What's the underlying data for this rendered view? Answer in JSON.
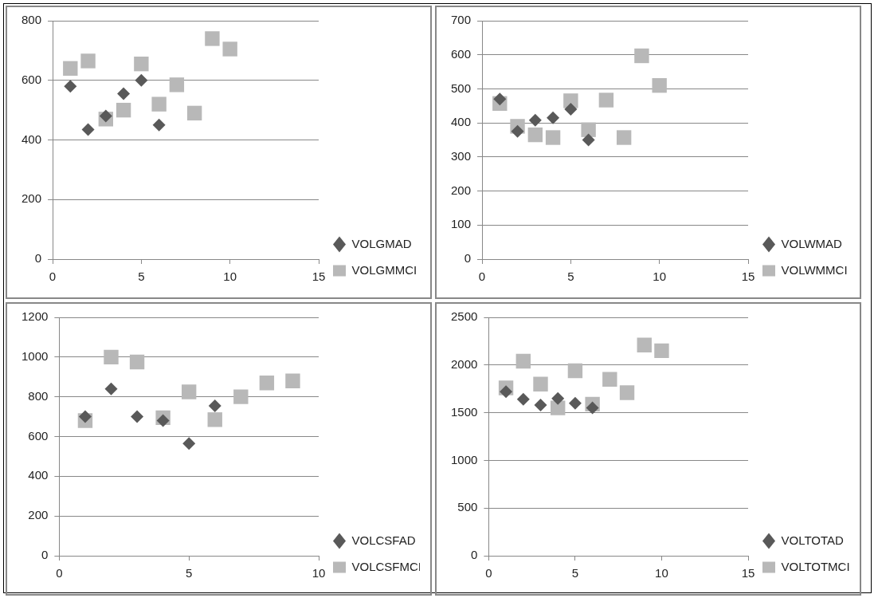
{
  "chart_data": [
    {
      "type": "scatter",
      "xlim": [
        0,
        15
      ],
      "xticks": [
        0,
        5,
        10,
        15
      ],
      "ylim": [
        0,
        800
      ],
      "yticks": [
        0,
        200,
        400,
        600,
        800
      ],
      "grid": "y",
      "legend": "bottom right",
      "series": [
        {
          "name": "VOLGMAD",
          "color": "#595959",
          "marker": "diamond",
          "x": [
            1,
            2,
            3,
            4,
            5,
            6
          ],
          "values": [
            580,
            435,
            480,
            555,
            600,
            450
          ]
        },
        {
          "name": "VOLGMMCI",
          "color": "#b8b8b8",
          "marker": "square",
          "x": [
            1,
            2,
            3,
            4,
            5,
            6,
            7,
            8,
            9,
            10
          ],
          "values": [
            640,
            665,
            470,
            500,
            655,
            520,
            585,
            490,
            740,
            705
          ]
        }
      ]
    },
    {
      "type": "scatter",
      "xlim": [
        0,
        15
      ],
      "xticks": [
        0,
        5,
        10,
        15
      ],
      "ylim": [
        0,
        700
      ],
      "yticks": [
        0,
        100,
        200,
        300,
        400,
        500,
        600,
        700
      ],
      "grid": "y",
      "legend": "bottom right",
      "series": [
        {
          "name": "VOLWMAD",
          "color": "#595959",
          "marker": "diamond",
          "x": [
            1,
            2,
            3,
            4,
            5,
            6
          ],
          "values": [
            470,
            375,
            408,
            415,
            440,
            350
          ]
        },
        {
          "name": "VOLWMMCI",
          "color": "#b8b8b8",
          "marker": "square",
          "x": [
            1,
            2,
            3,
            4,
            5,
            6,
            7,
            8,
            9,
            10
          ],
          "values": [
            457,
            390,
            365,
            357,
            465,
            380,
            467,
            357,
            597,
            510
          ]
        }
      ]
    },
    {
      "type": "scatter",
      "xlim": [
        0,
        10
      ],
      "xticks": [
        0,
        5,
        10
      ],
      "ylim": [
        0,
        1200
      ],
      "yticks": [
        0,
        200,
        400,
        600,
        800,
        1000,
        1200
      ],
      "grid": "y",
      "legend": "bottom right",
      "series": [
        {
          "name": "VOLCSFAD",
          "color": "#595959",
          "marker": "diamond",
          "x": [
            1,
            2,
            3,
            4,
            5,
            6
          ],
          "values": [
            700,
            840,
            700,
            680,
            565,
            755
          ]
        },
        {
          "name": "VOLCSFMCI",
          "color": "#b8b8b8",
          "marker": "square",
          "x": [
            1,
            2,
            3,
            4,
            5,
            6,
            7,
            8,
            9
          ],
          "values": [
            680,
            1000,
            975,
            695,
            825,
            685,
            800,
            870,
            880
          ]
        }
      ]
    },
    {
      "type": "scatter",
      "xlim": [
        0,
        15
      ],
      "xticks": [
        0,
        5,
        10,
        15
      ],
      "ylim": [
        0,
        2500
      ],
      "yticks": [
        0,
        500,
        1000,
        1500,
        2000,
        2500
      ],
      "grid": "y",
      "legend": "bottom right",
      "series": [
        {
          "name": "VOLTOTAD",
          "color": "#595959",
          "marker": "diamond",
          "x": [
            1,
            2,
            3,
            4,
            5,
            6
          ],
          "values": [
            1720,
            1640,
            1580,
            1650,
            1600,
            1550
          ]
        },
        {
          "name": "VOLTOTMCI",
          "color": "#b8b8b8",
          "marker": "square",
          "x": [
            1,
            2,
            3,
            4,
            5,
            6,
            7,
            8,
            9,
            10
          ],
          "values": [
            1760,
            2040,
            1800,
            1550,
            1940,
            1590,
            1850,
            1710,
            2210,
            2150
          ]
        }
      ]
    }
  ]
}
